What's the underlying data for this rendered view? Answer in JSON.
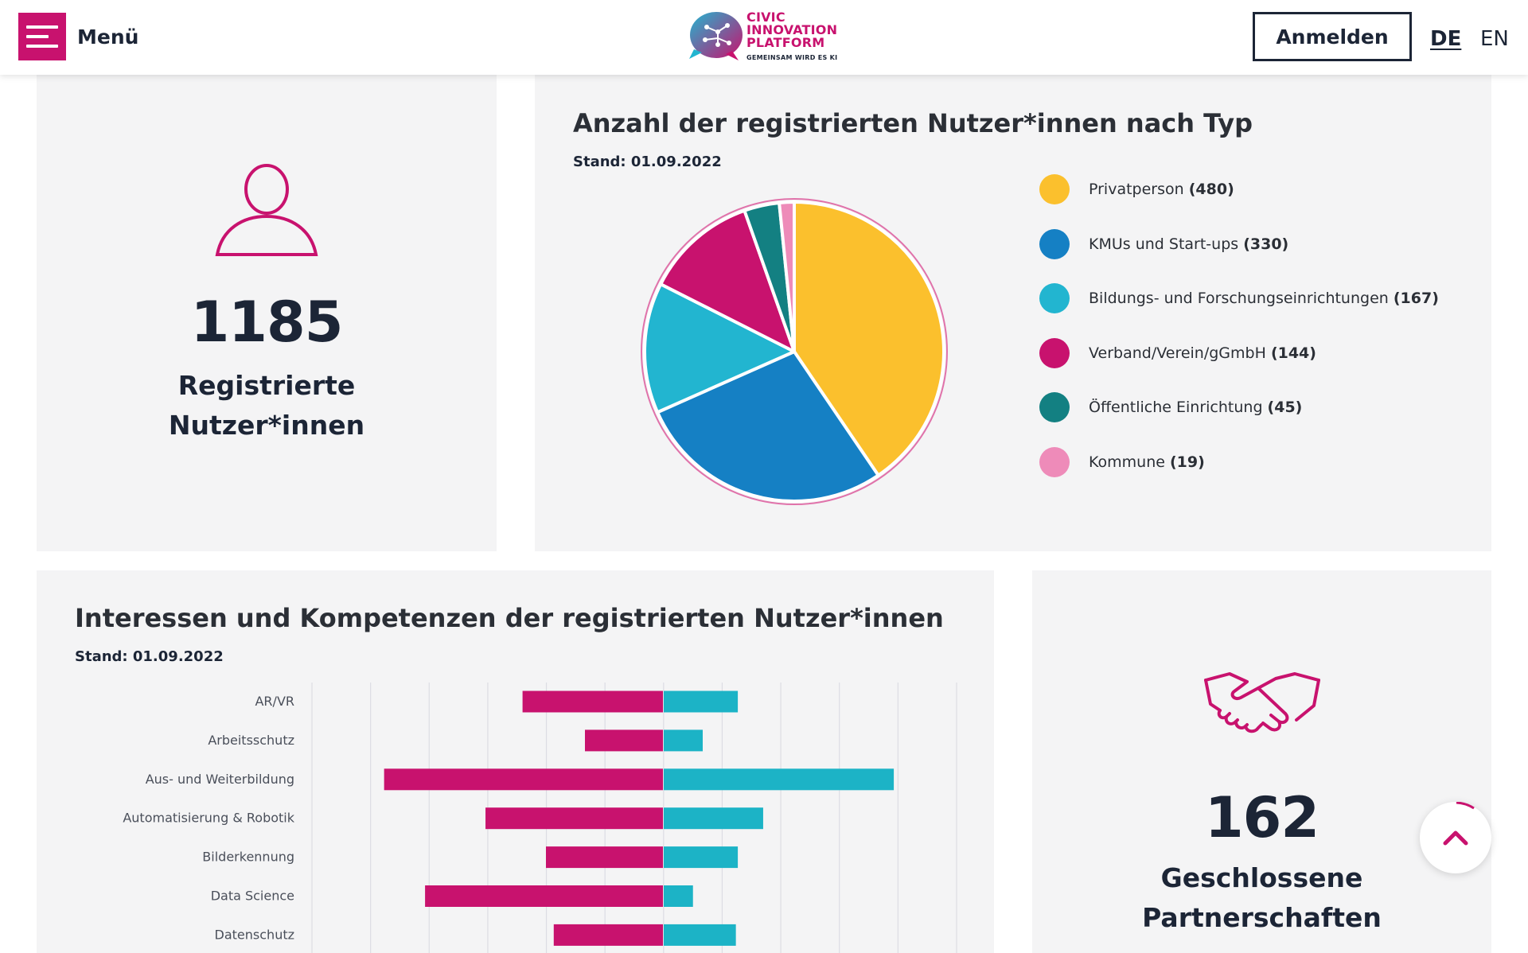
{
  "header": {
    "menu_label": "Menü",
    "logo_line1": "CIVIC",
    "logo_line2": "INNOVATION",
    "logo_line3": "PLATFORM",
    "logo_tagline": "GEMEINSAM WIRD ES KI",
    "login_label": "Anmelden",
    "lang_de": "DE",
    "lang_en": "EN"
  },
  "users_card": {
    "icon": "user-icon",
    "count": "1185",
    "label_line1": "Registrierte",
    "label_line2": "Nutzer*innen"
  },
  "pie_card": {
    "title": "Anzahl der registrierten Nutzer*innen nach Typ",
    "stand": "Stand: 01.09.2022",
    "legend": [
      {
        "name": "Privatperson",
        "count": "(480)",
        "color": "#fbc02d"
      },
      {
        "name": "KMUs und Start-ups",
        "count": "(330)",
        "color": "#1580c4"
      },
      {
        "name": "Bildungs- und Forschungseinrichtungen",
        "count": "(167)",
        "color": "#22b5d0"
      },
      {
        "name": "Verband/Verein/gGmbH",
        "count": "(144)",
        "color": "#c8126e"
      },
      {
        "name": "Öffentliche Einrichtung",
        "count": "(45)",
        "color": "#138082"
      },
      {
        "name": "Kommune",
        "count": "(19)",
        "color": "#ee8bb9"
      }
    ]
  },
  "bars_card": {
    "title": "Interessen und Kompetenzen der registrierten Nutzer*innen",
    "stand": "Stand: 01.09.2022",
    "colors": {
      "interessen": "#c8126e",
      "kompetenzen": "#1cb3c6"
    }
  },
  "partners_card": {
    "icon": "handshake-icon",
    "count": "162",
    "label_line1": "Geschlossene",
    "label_line2": "Partnerschaften"
  },
  "scroll_top": {
    "icon": "chevron-up-icon"
  },
  "chart_data": [
    {
      "type": "pie",
      "title": "Anzahl der registrierten Nutzer*innen nach Typ",
      "categories": [
        "Privatperson",
        "KMUs und Start-ups",
        "Bildungs- und Forschungseinrichtungen",
        "Verband/Verein/gGmbH",
        "Öffentliche Einrichtung",
        "Kommune"
      ],
      "values": [
        480,
        330,
        167,
        144,
        45,
        19
      ],
      "colors": [
        "#fbc02d",
        "#1580c4",
        "#22b5d0",
        "#c8126e",
        "#138082",
        "#ee8bb9"
      ],
      "legend": "right"
    },
    {
      "type": "bar",
      "orientation": "horizontal-diverging",
      "title": "Interessen und Kompetenzen der registrierten Nutzer*innen",
      "categories": [
        "AR/VR",
        "Arbeitsschutz",
        "Aus- und Weiterbildung",
        "Automatisierung & Robotik",
        "Bilderkennung",
        "Data Science",
        "Datenschutz"
      ],
      "series": [
        {
          "values": [
            72,
            40,
            143,
            91,
            60,
            122,
            56
          ]
        },
        {
          "values": [
            38,
            20,
            118,
            51,
            38,
            15,
            37
          ]
        }
      ],
      "xlim": [
        -180,
        150
      ],
      "grid": true
    }
  ]
}
